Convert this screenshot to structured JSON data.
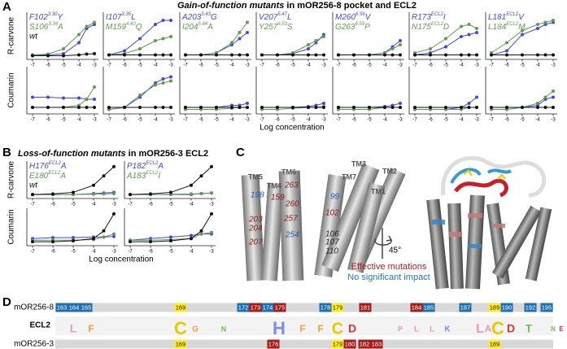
{
  "panel_a": {
    "label": "A",
    "title_italic": "Gain-of-function mutants",
    "title_rest": " in mOR256-8 pocket and ECL2",
    "row_labels": [
      "R-carvone",
      "Coumarin"
    ],
    "x_label": "Log concentration",
    "x": [
      -7,
      -6,
      -5,
      -4,
      -3.5,
      -3
    ],
    "xticks": [
      -7,
      -6,
      -5,
      -4,
      -3
    ],
    "series_colors": [
      "#4646d8",
      "#5f9c50",
      "#111111"
    ],
    "plots": [
      {
        "mutants": [
          {
            "aa": "F102",
            "sup": "3.30",
            "to": "Y"
          },
          {
            "aa": "S106",
            "sup": "3.34",
            "to": "A"
          }
        ],
        "wt": "wt",
        "rows": [
          [
            [
              0.05,
              0.05,
              0.08,
              0.35,
              0.7,
              0.8
            ],
            [
              0.05,
              0.07,
              0.2,
              0.55,
              0.75,
              0.85
            ],
            [
              0.03,
              0.03,
              0.03,
              0.05,
              0.07,
              0.08
            ]
          ],
          [
            [
              0.35,
              0.35,
              0.33,
              0.33,
              0.3,
              0.3
            ],
            [
              0.1,
              0.1,
              0.1,
              0.15,
              0.3,
              0.6
            ],
            [
              0.1,
              0.1,
              0.1,
              0.1,
              0.1,
              0.1
            ]
          ]
        ]
      },
      {
        "mutants": [
          {
            "aa": "I107",
            "sup": "3.35",
            "to": "L"
          },
          {
            "aa": "M159",
            "sup": "4.60",
            "to": "Q"
          }
        ],
        "rows": [
          [
            [
              0.05,
              0.15,
              0.45,
              0.8,
              0.9,
              0.9
            ],
            [
              0.05,
              0.08,
              0.2,
              0.4,
              0.45,
              0.5
            ],
            [
              0.05,
              0.05,
              0.05,
              0.05,
              0.05,
              0.05
            ]
          ],
          [
            [
              0.05,
              0.1,
              0.35,
              0.7,
              0.8,
              0.85
            ],
            [
              0.05,
              0.1,
              0.4,
              0.65,
              0.7,
              0.75
            ],
            [
              0.1,
              0.1,
              0.1,
              0.1,
              0.1,
              0.1
            ]
          ]
        ]
      },
      {
        "mutants": [
          {
            "aa": "A203",
            "sup": "5.43",
            "to": "G"
          },
          {
            "aa": "I204",
            "sup": "5.44",
            "to": "A"
          }
        ],
        "rows": [
          [
            [
              0.05,
              0.05,
              0.1,
              0.3,
              0.45,
              0.6
            ],
            [
              0.05,
              0.05,
              0.1,
              0.35,
              0.6,
              0.85
            ],
            [
              0.05,
              0.05,
              0.05,
              0.05,
              0.05,
              0.05
            ]
          ],
          [
            [
              0.1,
              0.1,
              0.1,
              0.15,
              0.15,
              0.2
            ],
            [
              0.05,
              0.05,
              0.05,
              0.08,
              0.1,
              0.1
            ],
            [
              0.1,
              0.1,
              0.1,
              0.1,
              0.1,
              0.1
            ]
          ]
        ]
      },
      {
        "mutants": [
          {
            "aa": "V207",
            "sup": "5.47",
            "to": "L"
          },
          {
            "aa": "Y257",
            "sup": "6.53",
            "to": "S"
          }
        ],
        "rows": [
          [
            [
              0.05,
              0.05,
              0.08,
              0.2,
              0.35,
              0.55
            ],
            [
              0.05,
              0.05,
              0.1,
              0.3,
              0.4,
              0.5
            ],
            [
              0.05,
              0.05,
              0.05,
              0.05,
              0.05,
              0.05
            ]
          ],
          [
            [
              0.1,
              0.1,
              0.1,
              0.12,
              0.15,
              0.2
            ],
            [
              0.05,
              0.05,
              0.08,
              0.1,
              0.1,
              0.12
            ],
            [
              0.1,
              0.1,
              0.1,
              0.1,
              0.1,
              0.1
            ]
          ]
        ]
      },
      {
        "mutants": [
          {
            "aa": "M260",
            "sup": "6.56",
            "to": "V"
          },
          {
            "aa": "G263",
            "sup": "6.59",
            "to": "P"
          }
        ],
        "rows": [
          [
            [
              0.05,
              0.05,
              0.05,
              0.1,
              0.25,
              0.4
            ],
            [
              0.05,
              0.05,
              0.05,
              0.1,
              0.2,
              0.3
            ],
            [
              0.05,
              0.05,
              0.05,
              0.05,
              0.05,
              0.05
            ]
          ],
          [
            [
              0.1,
              0.1,
              0.1,
              0.12,
              0.15,
              0.2
            ],
            [
              0.05,
              0.05,
              0.05,
              0.1,
              0.1,
              0.1
            ],
            [
              0.1,
              0.1,
              0.1,
              0.1,
              0.1,
              0.1
            ]
          ]
        ]
      },
      {
        "mutants": [
          {
            "aa": "R173",
            "sup": "ECL2",
            "to": "I"
          },
          {
            "aa": "N175",
            "sup": "ECL2",
            "to": "D"
          }
        ],
        "rows": [
          [
            [
              0.05,
              0.1,
              0.25,
              0.5,
              0.55,
              0.6
            ],
            [
              0.1,
              0.2,
              0.45,
              0.75,
              0.8,
              0.7
            ],
            [
              0.05,
              0.05,
              0.05,
              0.05,
              0.05,
              0.05
            ]
          ],
          [
            [
              0.05,
              0.05,
              0.05,
              0.1,
              0.2,
              0.35
            ],
            [
              0.05,
              0.05,
              0.05,
              0.05,
              0.1,
              0.1
            ],
            [
              0.1,
              0.1,
              0.1,
              0.1,
              0.1,
              0.1
            ]
          ]
        ]
      },
      {
        "mutants": [
          {
            "aa": "L181",
            "sup": "ECL2",
            "to": "V"
          },
          {
            "aa": "L184",
            "sup": "ECL2",
            "to": "M"
          }
        ],
        "rows": [
          [
            [
              0.05,
              0.15,
              0.55,
              0.7,
              0.8,
              0.85
            ],
            [
              0.1,
              0.35,
              0.65,
              0.8,
              0.85,
              0.9
            ],
            [
              0.05,
              0.05,
              0.05,
              0.05,
              0.05,
              0.05
            ]
          ],
          [
            [
              0.05,
              0.05,
              0.1,
              0.15,
              0.3,
              0.35
            ],
            [
              0.05,
              0.05,
              0.1,
              0.2,
              0.35,
              0.5
            ],
            [
              0.1,
              0.1,
              0.1,
              0.1,
              0.1,
              0.1
            ]
          ]
        ]
      }
    ]
  },
  "panel_b": {
    "label": "B",
    "title_italic": "Loss-of-function mutants",
    "title_rest": " in mOR256-3 ECL2",
    "row_labels": [
      "R-carvone",
      "Coumarin"
    ],
    "x_label": "Log concentration",
    "x": [
      -7,
      -6,
      -5,
      -4,
      -3.5,
      -3
    ],
    "xticks": [
      -7,
      -6,
      -5,
      -4,
      -3
    ],
    "series_colors": [
      "#4646d8",
      "#5f9c50",
      "#111111"
    ],
    "plots": [
      {
        "mutants": [
          {
            "aa": "H176",
            "sup": "ECL2",
            "to": "A"
          },
          {
            "aa": "E180",
            "sup": "ECL2",
            "to": "A"
          }
        ],
        "wt": "wt",
        "rows": [
          [
            [
              0.05,
              0.05,
              0.05,
              0.08,
              0.1,
              0.12
            ],
            [
              0.05,
              0.05,
              0.05,
              0.06,
              0.07,
              0.08
            ],
            [
              0.05,
              0.07,
              0.12,
              0.35,
              0.65,
              0.95
            ]
          ],
          [
            [
              0.15,
              0.18,
              0.18,
              0.2,
              0.2,
              0.22
            ],
            [
              0.1,
              0.1,
              0.1,
              0.12,
              0.2,
              0.3
            ],
            [
              0.05,
              0.05,
              0.08,
              0.15,
              0.4,
              0.95
            ]
          ]
        ]
      },
      {
        "mutants": [
          {
            "aa": "P182",
            "sup": "ECL2",
            "to": "A"
          },
          {
            "aa": "A183",
            "sup": "ECL2",
            "to": "I"
          }
        ],
        "rows": [
          [
            [
              0.05,
              0.05,
              0.05,
              0.05,
              0.08,
              0.1
            ],
            [
              0.05,
              0.05,
              0.06,
              0.07,
              0.08,
              0.1
            ],
            [
              0.05,
              0.07,
              0.12,
              0.35,
              0.65,
              0.95
            ]
          ],
          [
            [
              0.1,
              0.15,
              0.2,
              0.25,
              0.3,
              0.3
            ],
            [
              0.1,
              0.1,
              0.12,
              0.15,
              0.3,
              0.35
            ],
            [
              0.05,
              0.05,
              0.08,
              0.15,
              0.4,
              0.95
            ]
          ]
        ]
      }
    ]
  },
  "panel_c": {
    "label": "C",
    "helices": [
      "TM5",
      "TM4",
      "TM6",
      "TM3",
      "TM7",
      "TM2",
      "TM1"
    ],
    "residues": [
      {
        "label": "198",
        "color": "#1f5fa8"
      },
      {
        "label": "263",
        "color": "#8b1a1a"
      },
      {
        "label": "159",
        "color": "#8b1a1a"
      },
      {
        "label": "260",
        "color": "#8b1a1a"
      },
      {
        "label": "99",
        "color": "#1f5fa8"
      },
      {
        "label": "102",
        "color": "#8b1a1a"
      },
      {
        "label": "257",
        "color": "#8b1a1a"
      },
      {
        "label": "203",
        "color": "#8b1a1a"
      },
      {
        "label": "204",
        "color": "#8b1a1a"
      },
      {
        "label": "207",
        "color": "#8b1a1a"
      },
      {
        "label": "254",
        "color": "#1f5fa8"
      },
      {
        "label": "106",
        "color": "#222222"
      },
      {
        "label": "107",
        "color": "#222222"
      },
      {
        "label": "110",
        "color": "#222222"
      }
    ],
    "rotation": "45°",
    "legend": [
      {
        "label": "Effective mutations",
        "color": "#a82222"
      },
      {
        "label": "No significant impact",
        "color": "#2a73b8"
      }
    ]
  },
  "panel_d": {
    "label": "D",
    "rows": [
      {
        "name": "mOR256-8",
        "residues": [
          {
            "n": 163,
            "color": "#1f6fb0"
          },
          {
            "n": 164,
            "color": "#1f6fb0"
          },
          {
            "n": 165,
            "color": "#1f6fb0"
          },
          {
            "n": 169,
            "color": "#ffe92b"
          },
          {
            "n": 172,
            "color": "#1f6fb0"
          },
          {
            "n": 173,
            "color": "#a51c1c"
          },
          {
            "n": 174,
            "color": "#1f6fb0"
          },
          {
            "n": 175,
            "color": "#a51c1c"
          },
          {
            "n": 178,
            "color": "#1f6fb0"
          },
          {
            "n": 179,
            "color": "#ffe92b"
          },
          {
            "n": 181,
            "color": "#a51c1c"
          },
          {
            "n": 184,
            "color": "#a51c1c"
          },
          {
            "n": 185,
            "color": "#1f6fb0"
          },
          {
            "n": 187,
            "color": "#1f6fb0"
          },
          {
            "n": 189,
            "color": "#ffe92b"
          },
          {
            "n": 190,
            "color": "#1f6fb0"
          },
          {
            "n": 192,
            "color": "#1f6fb0"
          },
          {
            "n": 195,
            "color": "#1f6fb0"
          }
        ]
      },
      {
        "name": "mOR256-3",
        "residues": [
          {
            "n": 169,
            "color": "#ffe92b"
          },
          {
            "n": 176,
            "color": "#a51c1c"
          },
          {
            "n": 179,
            "color": "#ffe92b"
          },
          {
            "n": 180,
            "color": "#a51c1c"
          },
          {
            "n": 182,
            "color": "#a51c1c"
          },
          {
            "n": 183,
            "color": "#a51c1c"
          },
          {
            "n": 189,
            "color": "#ffe92b"
          }
        ]
      }
    ],
    "logo_name": "ECL2",
    "logo": [
      {
        "letter": "L",
        "color": "#e59ac6"
      },
      {
        "letter": "F",
        "color": "#f0a040"
      },
      {
        "letter": "C",
        "color": "#e8c800"
      },
      {
        "letter": "G",
        "color": "#f0a040"
      },
      {
        "letter": "N",
        "color": "#6fbf5a"
      },
      {
        "letter": "H",
        "color": "#7a8ee8"
      },
      {
        "letter": "F",
        "color": "#f0a040"
      },
      {
        "letter": "F",
        "color": "#f0a040"
      },
      {
        "letter": "C",
        "color": "#e8c800"
      },
      {
        "letter": "D",
        "color": "#e03030"
      },
      {
        "letter": "P",
        "color": "#e59ac6"
      },
      {
        "letter": "L",
        "color": "#e59ac6"
      },
      {
        "letter": "L",
        "color": "#e59ac6"
      },
      {
        "letter": "K",
        "color": "#7a8ee8"
      },
      {
        "letter": "L",
        "color": "#e59ac6"
      },
      {
        "letter": "A",
        "color": "#e59ac6"
      },
      {
        "letter": "C",
        "color": "#e8c800"
      },
      {
        "letter": "D",
        "color": "#e03030"
      },
      {
        "letter": "T",
        "color": "#6fbf5a"
      },
      {
        "letter": "N",
        "color": "#6fbf5a"
      },
      {
        "letter": "E",
        "color": "#e03030"
      }
    ]
  }
}
